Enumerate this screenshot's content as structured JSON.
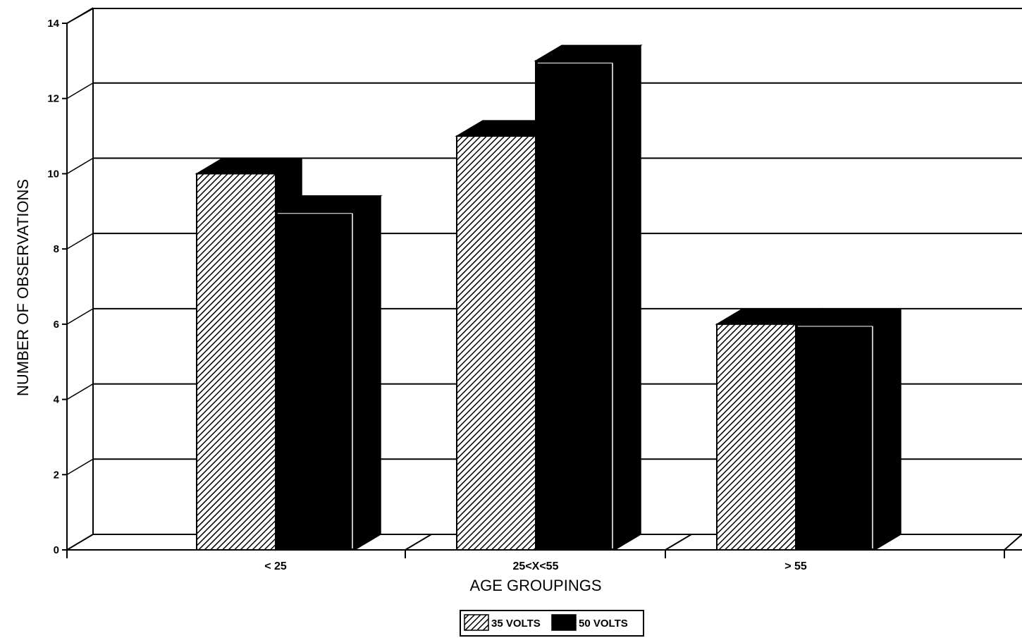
{
  "chart_data": {
    "type": "bar",
    "title": "",
    "xlabel": "AGE GROUPINGS",
    "ylabel": "NUMBER OF OBSERVATIONS",
    "categories": [
      "< 25",
      "25<X<55",
      "> 55"
    ],
    "series": [
      {
        "name": "35 VOLTS",
        "values": [
          10,
          11,
          6
        ]
      },
      {
        "name": "50 VOLTS",
        "values": [
          9,
          13,
          6
        ]
      }
    ],
    "ylim": [
      0,
      14
    ],
    "yticks": [
      "0",
      "2",
      "4",
      "6",
      "8",
      "10",
      "12",
      "14"
    ],
    "grid": true,
    "legend_position": "bottom-center",
    "colors": {
      "ink": "#000000",
      "background": "#ffffff"
    },
    "series_fill": [
      "diagonal-hatch",
      "solid-black"
    ],
    "three_d": true
  }
}
